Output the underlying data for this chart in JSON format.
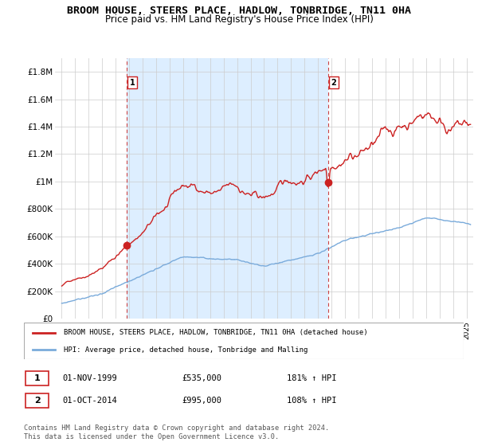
{
  "title": "BROOM HOUSE, STEERS PLACE, HADLOW, TONBRIDGE, TN11 0HA",
  "subtitle": "Price paid vs. HM Land Registry's House Price Index (HPI)",
  "ylim": [
    0,
    1900000
  ],
  "yticks": [
    0,
    200000,
    400000,
    600000,
    800000,
    1000000,
    1200000,
    1400000,
    1600000,
    1800000
  ],
  "ytick_labels": [
    "£0",
    "£200K",
    "£400K",
    "£600K",
    "£800K",
    "£1M",
    "£1.2M",
    "£1.4M",
    "£1.6M",
    "£1.8M"
  ],
  "xlim_start": 1994.5,
  "xlim_end": 2025.5,
  "sale1_x": 1999.83,
  "sale1_y": 535000,
  "sale2_x": 2014.75,
  "sale2_y": 995000,
  "line_color_red": "#cc2222",
  "line_color_blue": "#7aabdb",
  "shade_color": "#ddeeff",
  "grid_color": "#cccccc",
  "legend_line1": "BROOM HOUSE, STEERS PLACE, HADLOW, TONBRIDGE, TN11 0HA (detached house)",
  "legend_line2": "HPI: Average price, detached house, Tonbridge and Malling",
  "table_row1": [
    "1",
    "01-NOV-1999",
    "£535,000",
    "181% ↑ HPI"
  ],
  "table_row2": [
    "2",
    "01-OCT-2014",
    "£995,000",
    "108% ↑ HPI"
  ],
  "footnote": "Contains HM Land Registry data © Crown copyright and database right 2024.\nThis data is licensed under the Open Government Licence v3.0."
}
